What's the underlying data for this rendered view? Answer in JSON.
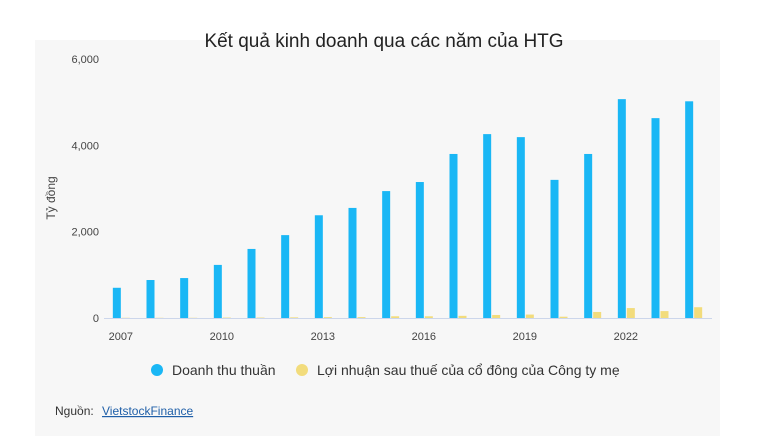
{
  "chart_data": {
    "type": "bar",
    "title": "Kết quả kinh doanh qua các năm của HTG",
    "y_label": "Tỷ đồng",
    "categories": [
      "2007",
      null,
      null,
      "2010",
      null,
      null,
      "2013",
      null,
      null,
      "2016",
      null,
      null,
      "2019",
      null,
      null,
      "2022",
      null,
      null
    ],
    "series": [
      {
        "name": "Doanh thu thuần",
        "color": "#1ab7f5",
        "values": [
          700,
          880,
          925,
          1230,
          1600,
          1920,
          2380,
          2550,
          2940,
          3150,
          3800,
          4260,
          4190,
          3200,
          3800,
          5070,
          4630,
          5020
        ]
      },
      {
        "name": "Lợi nhuận sau thuế của cổ đông của Công ty mẹ",
        "color": "#f2dc7c",
        "values": [
          5,
          5,
          5,
          10,
          10,
          15,
          20,
          20,
          40,
          40,
          50,
          70,
          80,
          30,
          140,
          230,
          160,
          250
        ]
      }
    ],
    "ylim": [
      0,
      6000
    ],
    "yticks": [
      0,
      {
        "value": 2000,
        "label": "2,000"
      },
      {
        "value": 4000,
        "label": "4,000"
      },
      {
        "value": 6000,
        "label": "6,000"
      }
    ],
    "grid": false,
    "source_label": "Nguồn:",
    "source": "VietstockFinance"
  }
}
